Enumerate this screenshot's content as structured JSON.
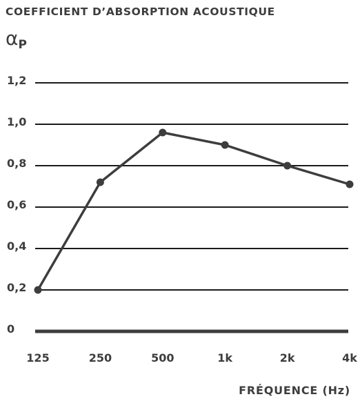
{
  "chart_data": {
    "type": "line",
    "title": "COEFFICIENT D’ABSORPTION ACOUSTIQUE",
    "ylabel_symbol": "α",
    "ylabel_subscript": "P",
    "xlabel": "FRÉQUENCE (Hz)",
    "categories": [
      "125",
      "250",
      "500",
      "1k",
      "2k",
      "4k"
    ],
    "series": [
      {
        "values": [
          0.2,
          0.72,
          0.96,
          0.9,
          0.8,
          0.71
        ]
      }
    ],
    "yticks": [
      0,
      0.2,
      0.4,
      0.6,
      0.8,
      1.0,
      1.2
    ],
    "ytick_labels": [
      "0",
      "0,2",
      "0,4",
      "0,6",
      "0,8",
      "1,0",
      "1,2"
    ],
    "ylim": [
      0,
      1.2
    ],
    "grid": true,
    "legend": "none",
    "colors": {
      "line": "#3d3d3d",
      "grid": "#1a1a1a",
      "text": "#3d3d3d"
    }
  }
}
